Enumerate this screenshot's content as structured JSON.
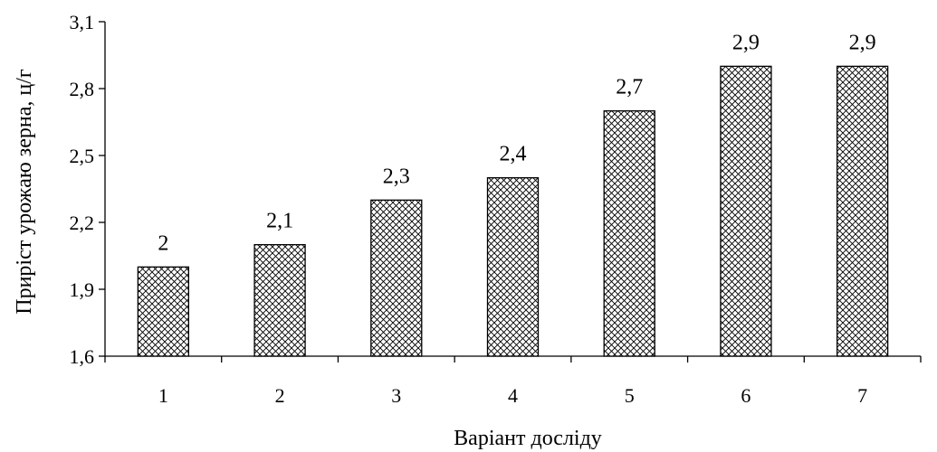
{
  "chart_data": {
    "type": "bar",
    "title": "",
    "xlabel": "Варіант досліду",
    "ylabel": "Приріст урожаю зерна, ц/г",
    "categories": [
      "1",
      "2",
      "3",
      "4",
      "5",
      "6",
      "7"
    ],
    "values": [
      2.0,
      2.1,
      2.3,
      2.4,
      2.7,
      2.9,
      2.9
    ],
    "data_labels": [
      "2",
      "2,1",
      "2,3",
      "2,4",
      "2,7",
      "2,9",
      "2,9"
    ],
    "ylim": [
      1.6,
      3.1
    ],
    "yticks": [
      1.6,
      1.9,
      2.2,
      2.5,
      2.8,
      3.1
    ],
    "ytick_labels": [
      "1,6",
      "1,9",
      "2,2",
      "2,5",
      "2,8",
      "3,1"
    ],
    "grid": false,
    "legend": "none",
    "bar_pattern": "crosshatch",
    "bar_color": "#000000"
  }
}
